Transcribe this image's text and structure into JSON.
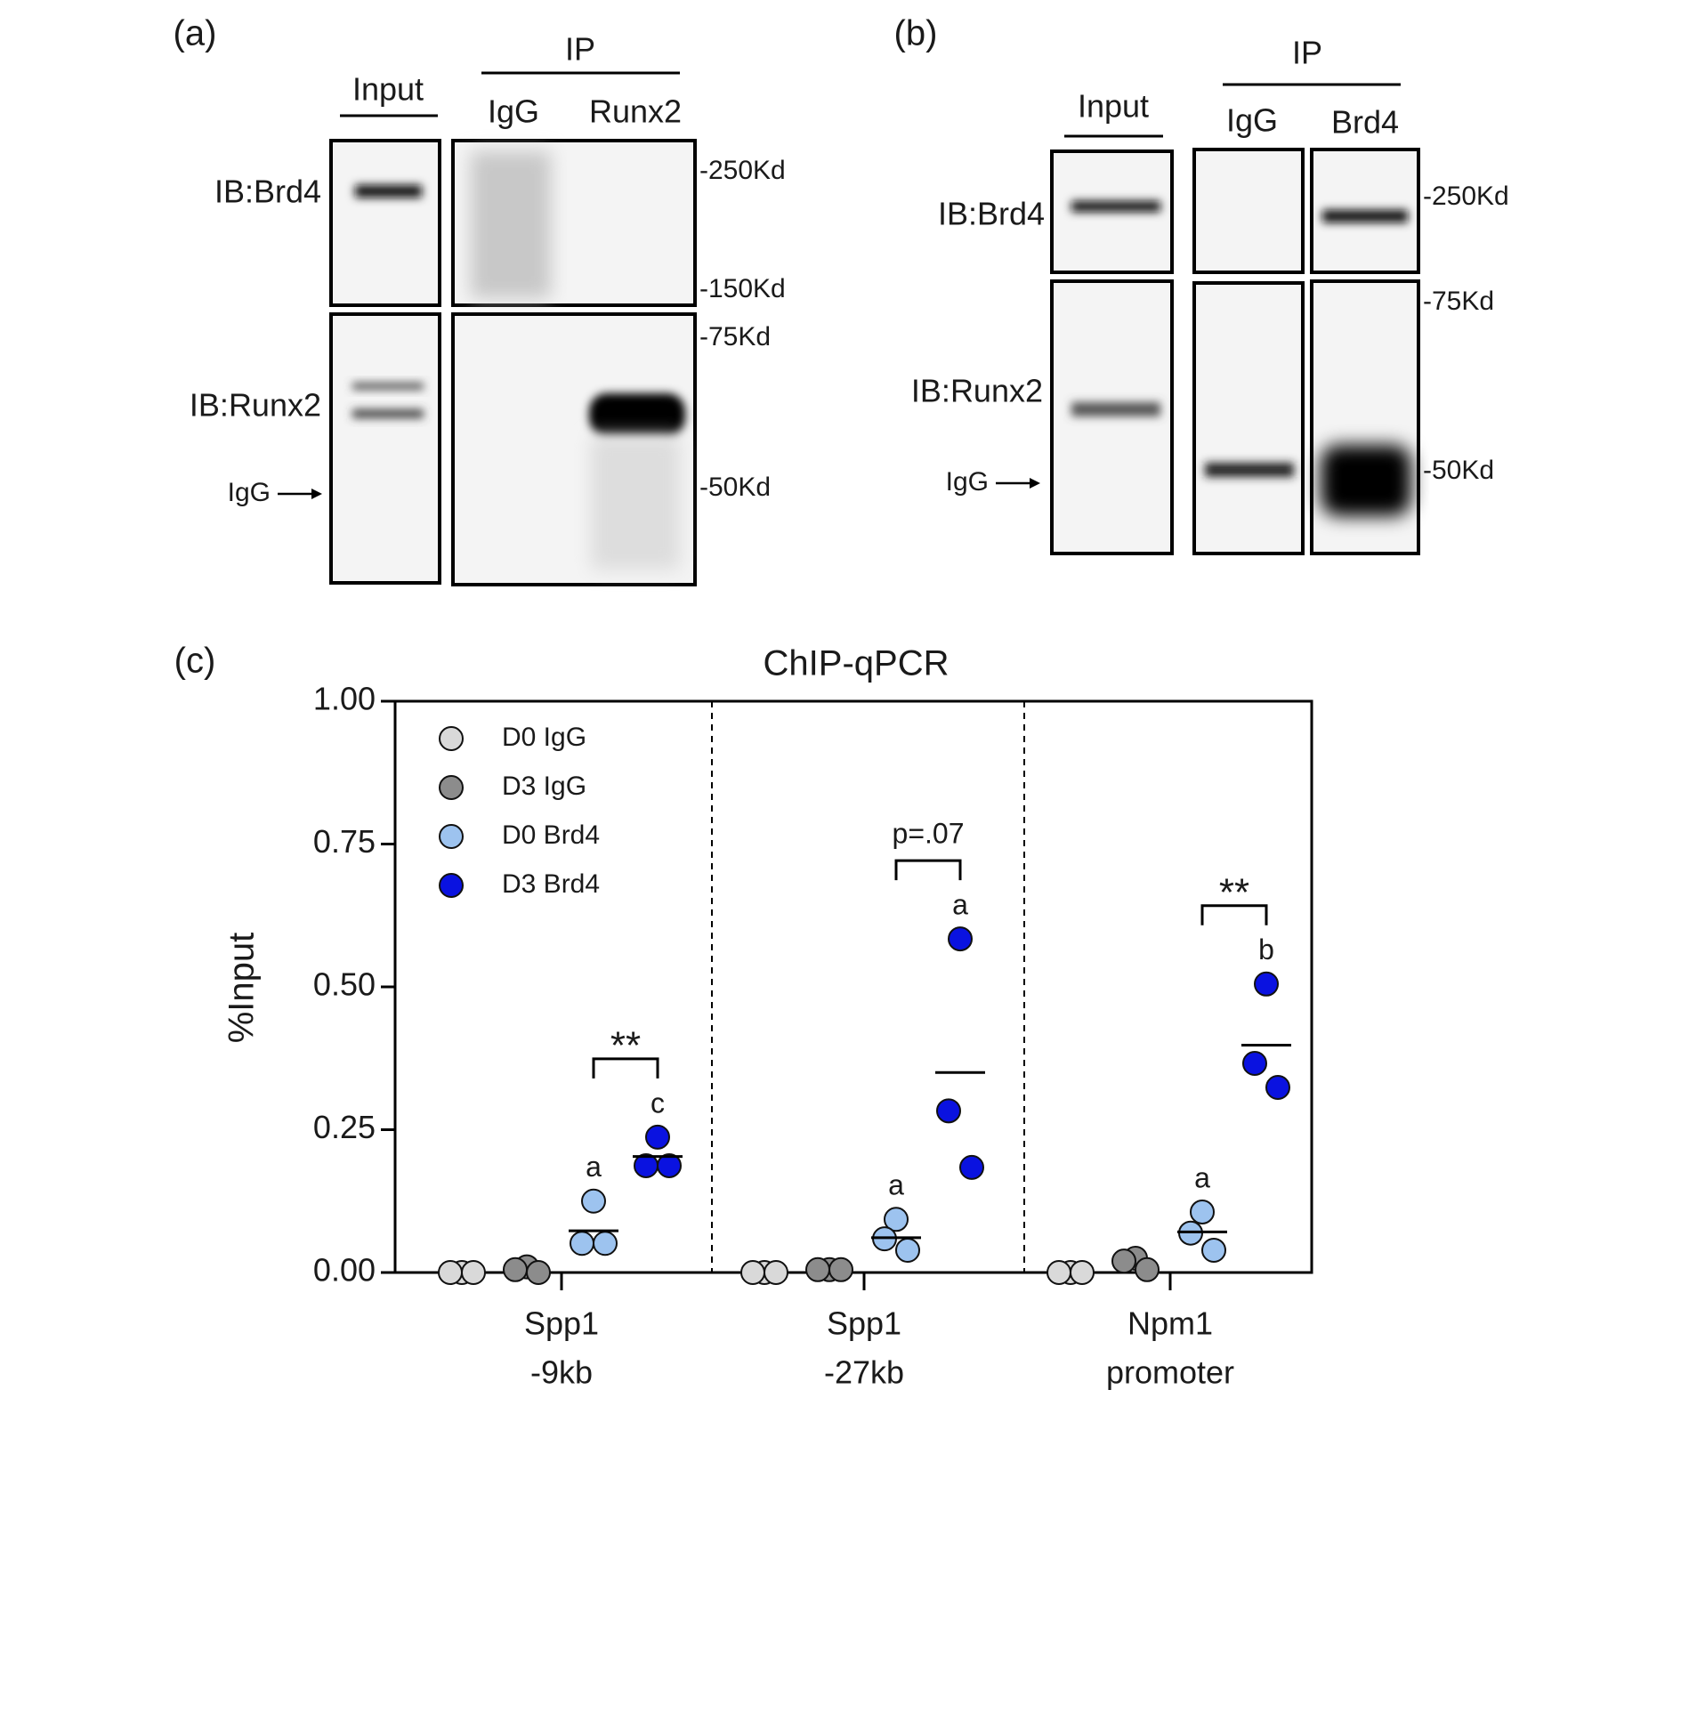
{
  "panel_labels": [
    "(a)",
    "(b)",
    "(c)"
  ],
  "blot_a": {
    "input": "Input",
    "ip": "IP",
    "lanes": [
      "IgG",
      "Runx2"
    ],
    "rows": [
      "IB:Brd4",
      "IB:Runx2"
    ],
    "igg_arrow": "IgG",
    "markers": [
      "-250Kd",
      "-150Kd",
      "-75Kd",
      "-50Kd"
    ]
  },
  "blot_b": {
    "input": "Input",
    "ip": "IP",
    "lanes": [
      "IgG",
      "Brd4"
    ],
    "rows": [
      "IB:Brd4",
      "IB:Runx2"
    ],
    "igg_arrow": "IgG",
    "markers": [
      "-250Kd",
      "-75Kd",
      "-50Kd"
    ]
  },
  "chart_data": {
    "type": "dot",
    "title": "ChIP-qPCR",
    "y_label": "%Input",
    "categories": [
      [
        "Spp1",
        "-9kb"
      ],
      [
        "Spp1",
        "-27kb"
      ],
      [
        "Npm1",
        "promoter"
      ]
    ],
    "ylim": [
      0,
      1
    ],
    "yticks": [
      {
        "value": 0,
        "label": "0.00"
      },
      {
        "value": 0.25,
        "label": "0.25"
      },
      {
        "value": 0.5,
        "label": "0.50"
      },
      {
        "value": 0.75,
        "label": "0.75"
      },
      {
        "value": 1,
        "label": "1.00"
      }
    ],
    "legend": "top-left",
    "series": [
      {
        "name": "D0 IgG",
        "color": "#d9d9d9",
        "values": [
          [
            0,
            0,
            0
          ],
          [
            0,
            0,
            0
          ],
          [
            0,
            0,
            0
          ]
        ]
      },
      {
        "name": "D3 IgG",
        "color": "#8c8c8c",
        "values": [
          [
            0.01,
            0.005,
            0
          ],
          [
            0.005,
            0.005,
            0.005
          ],
          [
            0.025,
            0.02,
            0.005
          ]
        ]
      },
      {
        "name": "D0 Brd4",
        "color": "#9dc3ef",
        "values": [
          [
            0.125,
            0.051,
            0.051
          ],
          [
            0.093,
            0.059,
            0.039
          ],
          [
            0.106,
            0.069,
            0.039
          ]
        ],
        "means": [
          0.073,
          0.061,
          0.071
        ]
      },
      {
        "name": "D3 Brd4",
        "color": "#0a12e0",
        "values": [
          [
            0.237,
            0.187,
            0.187
          ],
          [
            0.584,
            0.283,
            0.184
          ],
          [
            0.505,
            0.366,
            0.324
          ]
        ],
        "means": [
          0.203,
          0.35,
          0.398
        ]
      }
    ],
    "letters": [
      {
        "text": "a",
        "category": 0,
        "series": 2
      },
      {
        "text": "c",
        "category": 0,
        "series": 3
      },
      {
        "text": "a",
        "category": 1,
        "series": 2
      },
      {
        "text": "a",
        "category": 1,
        "series": 3
      },
      {
        "text": "a",
        "category": 2,
        "series": 2
      },
      {
        "text": "b",
        "category": 2,
        "series": 3
      }
    ],
    "brackets": [
      {
        "text": "**",
        "category": 0
      },
      {
        "text": "p=.07",
        "category": 1
      },
      {
        "text": "**",
        "category": 2
      }
    ]
  }
}
